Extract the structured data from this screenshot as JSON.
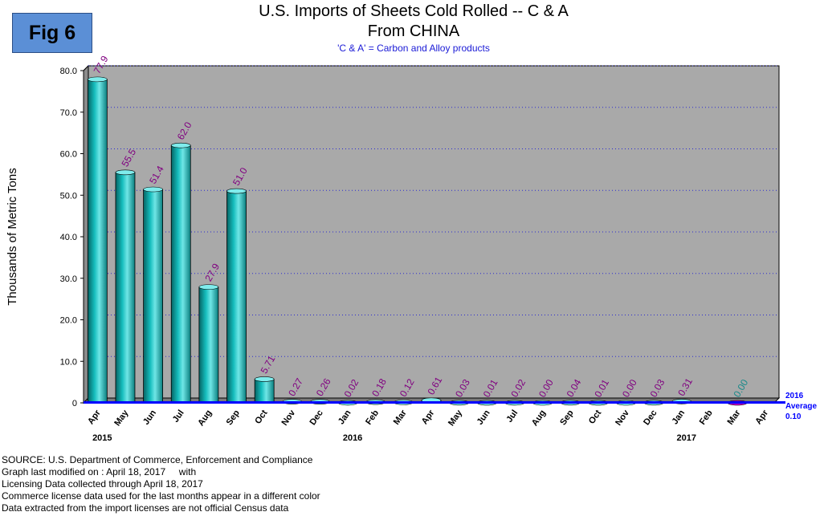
{
  "badge": "Fig 6",
  "title_line1": "U.S. Imports of Sheets Cold Rolled -- C & A",
  "title_line2": "From CHINA",
  "subtitle": "'C & A' = Carbon and Alloy products",
  "notes": [
    "SOURCE: U.S. Department of Commerce, Enforcement and Compliance",
    "Graph last modified on : April 18, 2017     with",
    "Licensing Data collected through April 18, 2017",
    "Commerce license data used for the last months appear in a different color",
    "Data extracted from the import licenses are not official Census data"
  ],
  "colors": {
    "bar": "#15bdbd",
    "bar_dark": "#066464",
    "bar_light": "#7fecec",
    "license_bar": "#c000c0",
    "plot_bg": "#a9a9a9",
    "grid": "#2a2ad0",
    "data_label": "#800080",
    "data_label_license": "#1a8a8a",
    "average_line": "#0000ff"
  },
  "chart_data": {
    "type": "bar",
    "ylabel": "Thousands of Metric Tons",
    "ylim": [
      0,
      80
    ],
    "yticks": [
      "0",
      "10.0",
      "20.0",
      "30.0",
      "40.0",
      "50.0",
      "60.0",
      "70.0",
      "80.0"
    ],
    "grid": true,
    "categories": [
      "Apr",
      "May",
      "Jun",
      "Jul",
      "Aug",
      "Sep",
      "Oct",
      "Nov",
      "Dec",
      "Jan",
      "Feb",
      "Mar",
      "Apr",
      "May",
      "Jun",
      "Jul",
      "Aug",
      "Sep",
      "Oct",
      "Nov",
      "Dec",
      "Jan",
      "Feb",
      "Mar",
      "Apr"
    ],
    "year_labels": [
      {
        "index": 0,
        "year": "2015"
      },
      {
        "index": 9,
        "year": "2016"
      },
      {
        "index": 21,
        "year": "2017"
      }
    ],
    "values": [
      77.9,
      55.5,
      51.4,
      62.0,
      27.9,
      51.0,
      5.71,
      0.27,
      0.26,
      0.02,
      0.18,
      0.12,
      0.61,
      0.03,
      0.01,
      0.02,
      0.0,
      0.04,
      0.01,
      0.0,
      0.03,
      0.31,
      null,
      0.0,
      null
    ],
    "data_labels": [
      "77.9",
      "55.5",
      "51.4",
      "62.0",
      "27.9",
      "51.0",
      "5.71",
      "0.27",
      "0.26",
      "0.02",
      "0.18",
      "0.12",
      "0.61",
      "0.03",
      "0.01",
      "0.02",
      "0.00",
      "0.04",
      "0.01",
      "0.00",
      "0.03",
      "0.31",
      "",
      "0.00",
      ""
    ],
    "license_data_index": 23,
    "average": {
      "value": 0.1,
      "label_lines": [
        "2016",
        "Average",
        "0.10"
      ]
    }
  }
}
